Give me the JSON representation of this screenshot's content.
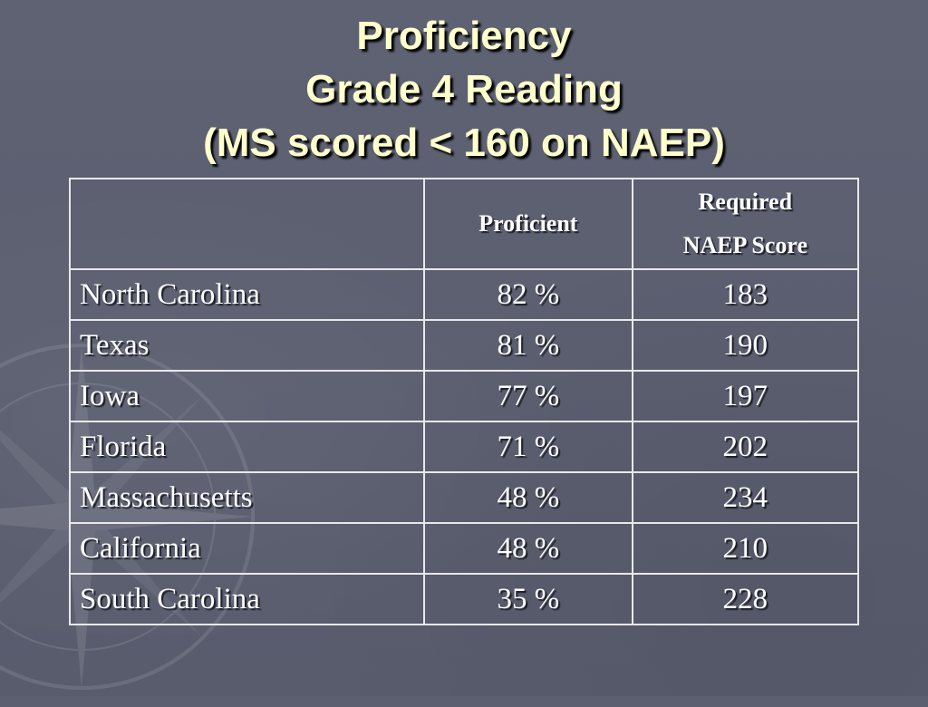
{
  "title": {
    "line1": "Proficiency",
    "line2": "Grade 4 Reading",
    "line3": "(MS scored < 160 on NAEP)"
  },
  "table": {
    "headers": {
      "state": "",
      "proficient": "Proficient",
      "required_line1": "Required",
      "required_line2": "NAEP Score"
    },
    "rows": [
      {
        "state": "North Carolina",
        "proficient": "82 %",
        "score": "183"
      },
      {
        "state": "Texas",
        "proficient": "81 %",
        "score": "190"
      },
      {
        "state": "Iowa",
        "proficient": "77 %",
        "score": "197"
      },
      {
        "state": "Florida",
        "proficient": "71 %",
        "score": "202"
      },
      {
        "state": "Massachusetts",
        "proficient": "48 %",
        "score": "234"
      },
      {
        "state": "California",
        "proficient": "48 %",
        "score": "210"
      },
      {
        "state": "South Carolina",
        "proficient": "35 %",
        "score": "228"
      }
    ]
  },
  "colors": {
    "background": "#5b5f70",
    "title_text": "#ffffcc",
    "table_text": "#ffffff",
    "table_border": "#e8e8ec"
  }
}
